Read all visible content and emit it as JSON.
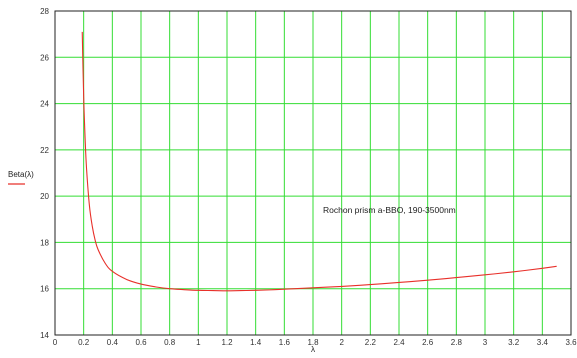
{
  "chart_data": {
    "type": "line",
    "title": "",
    "xlabel": "λ",
    "ylabel": "Beta(λ)",
    "xlim": [
      0,
      3.6
    ],
    "ylim": [
      14,
      28
    ],
    "x_ticks": [
      "0",
      "0.2",
      "0.4",
      "0.6",
      "0.8",
      "1",
      "1.2",
      "1.4",
      "1.6",
      "1.8",
      "2",
      "2.2",
      "2.4",
      "2.6",
      "2.8",
      "3",
      "3.2",
      "3.4",
      "3.6"
    ],
    "y_ticks": [
      "14",
      "16",
      "18",
      "20",
      "22",
      "24",
      "26",
      "28"
    ],
    "grid": true,
    "annotation": "Rochon prism  a-BBO, 190-3500nm",
    "series": [
      {
        "color": "#e8302a",
        "x": [
          0.19,
          0.2,
          0.21,
          0.22,
          0.24,
          0.26,
          0.28,
          0.3,
          0.35,
          0.4,
          0.5,
          0.6,
          0.7,
          0.8,
          0.9,
          1.0,
          1.1,
          1.2,
          1.3,
          1.4,
          1.5,
          1.6,
          1.8,
          2.0,
          2.2,
          2.4,
          2.6,
          2.8,
          3.0,
          3.2,
          3.4,
          3.5
        ],
        "y": [
          27.1,
          24.3,
          22.5,
          21.2,
          19.6,
          18.7,
          18.1,
          17.7,
          17.1,
          16.75,
          16.4,
          16.2,
          16.08,
          16.0,
          15.96,
          15.93,
          15.92,
          15.91,
          15.92,
          15.93,
          15.95,
          15.98,
          16.04,
          16.1,
          16.18,
          16.27,
          16.37,
          16.48,
          16.6,
          16.73,
          16.88,
          16.97
        ]
      }
    ],
    "colors": {
      "grid": "#33dd33",
      "frame": "#222222",
      "curve": "#e8302a"
    }
  }
}
